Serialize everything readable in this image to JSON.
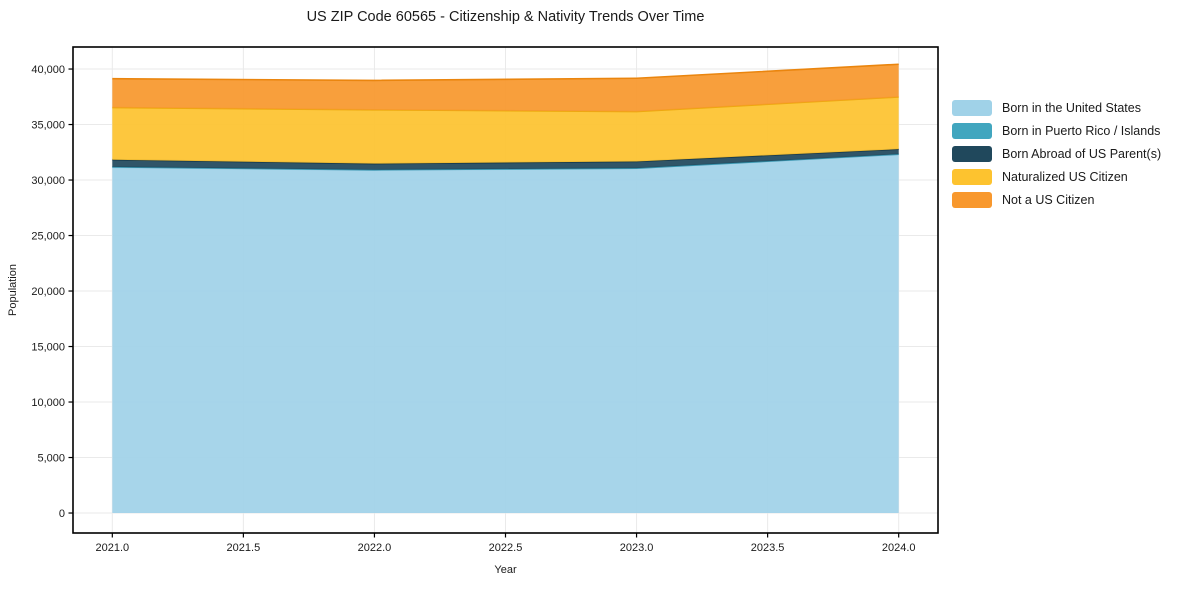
{
  "figure": {
    "title": "US ZIP Code 60565 - Citizenship & Nativity Trends Over Time"
  },
  "chart_data": {
    "type": "area",
    "stacked": true,
    "title": "US ZIP Code 60565 - Citizenship & Nativity Trends Over Time",
    "xlabel": "Year",
    "ylabel": "Population",
    "x": [
      2021,
      2022,
      2023,
      2024
    ],
    "series": [
      {
        "name": "Born in the United States",
        "color": "#a0d2e8",
        "edge": "#8ec5de",
        "values": [
          31150,
          30900,
          31050,
          32300
        ]
      },
      {
        "name": "Born in Puerto Rico / Islands",
        "color": "#41a6bf",
        "edge": "#3795ae",
        "values": [
          30,
          25,
          20,
          30
        ]
      },
      {
        "name": "Born Abroad of US Parent(s)",
        "color": "#20485c",
        "edge": "#16384a",
        "values": [
          650,
          550,
          600,
          450
        ]
      },
      {
        "name": "Naturalized US Citizen",
        "color": "#fdc32f",
        "edge": "#eda90e",
        "values": [
          4700,
          4850,
          4500,
          4700
        ]
      },
      {
        "name": "Not a US Citizen",
        "color": "#f8982d",
        "edge": "#ea850e",
        "values": [
          2600,
          2650,
          3000,
          2950
        ]
      }
    ],
    "totals": [
      39130,
      38975,
      39170,
      40430
    ],
    "xticks": [
      2021.0,
      2021.5,
      2022.0,
      2022.5,
      2023.0,
      2023.5,
      2024.0
    ],
    "yticks": [
      0,
      5000,
      10000,
      15000,
      20000,
      25000,
      30000,
      35000,
      40000
    ],
    "xlim": [
      2020.85,
      2024.15
    ],
    "ylim": [
      -1800,
      41985
    ],
    "grid": true,
    "grid_color": "#eaeaea",
    "spine_color": "#000000",
    "tick_label_color": "#1a1a1a",
    "legend_position": "right-outside"
  }
}
